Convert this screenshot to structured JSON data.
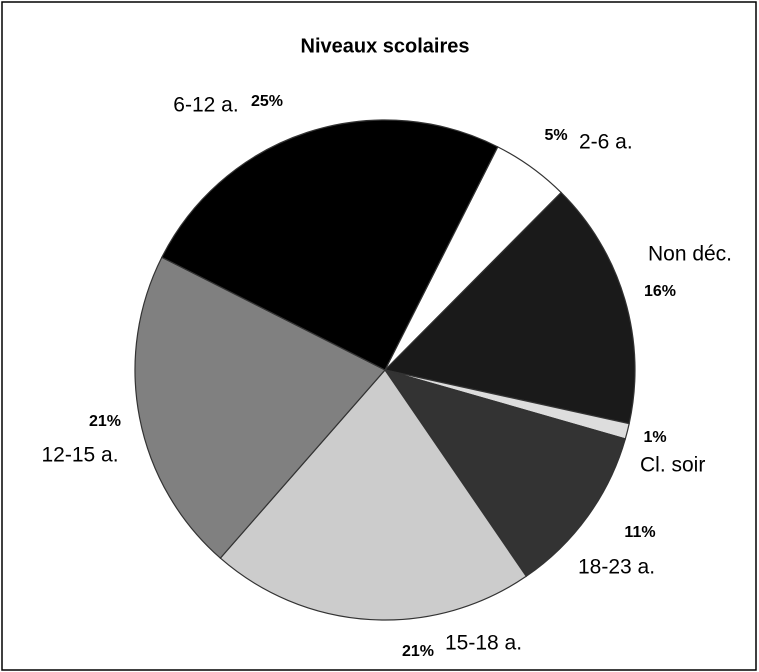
{
  "chart_data": {
    "type": "pie",
    "title": "Niveaux scolaires",
    "categories": [
      "2-6 a.",
      "Non déc.",
      "Cl. soir",
      "18-23 a.",
      "15-18 a.",
      "12-15 a.",
      "6-12 a."
    ],
    "values": [
      5,
      16,
      1,
      11,
      21,
      21,
      25
    ],
    "value_labels": [
      "5%",
      "16%",
      "1%",
      "11%",
      "21%",
      "21%",
      "25%"
    ],
    "colors": [
      "#ffffff",
      "#1a1a1a",
      "#dddddd",
      "#333333",
      "#cccccc",
      "#808080",
      "#000000"
    ]
  }
}
